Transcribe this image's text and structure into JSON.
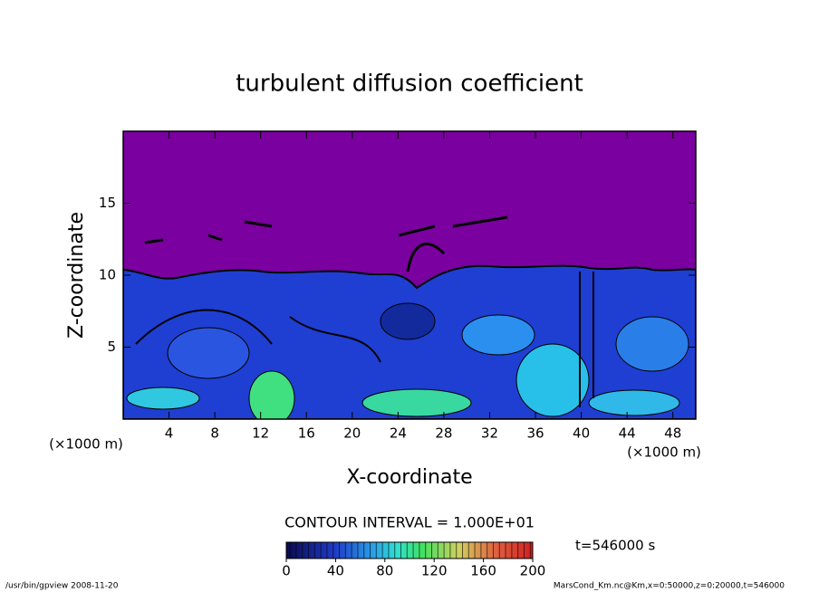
{
  "chart_data": {
    "type": "contour",
    "title": "turbulent diffusion coefficient",
    "x_label": "X-coordinate",
    "y_label": "Z-coordinate",
    "x_unit": "(×1000 m)",
    "y_unit": "(×1000 m)",
    "xlim": [
      0,
      50
    ],
    "xticks": [
      4,
      8,
      12,
      16,
      20,
      24,
      28,
      32,
      36,
      40,
      44,
      48
    ],
    "ylim": [
      0,
      20
    ],
    "yticks": [
      5,
      10,
      15
    ],
    "contour_interval_label": "CONTOUR INTERVAL = 1.000E+01",
    "time_label": "t=546000 s",
    "colorbar": {
      "lim": [
        0,
        200
      ],
      "ticks": [
        0,
        40,
        80,
        120,
        160,
        200
      ]
    }
  },
  "footer": {
    "left": "/usr/bin/gpview  2008-11-20",
    "right": "MarsCond_Km.nc@Km,x=0:50000,z=0:20000,t=546000"
  }
}
